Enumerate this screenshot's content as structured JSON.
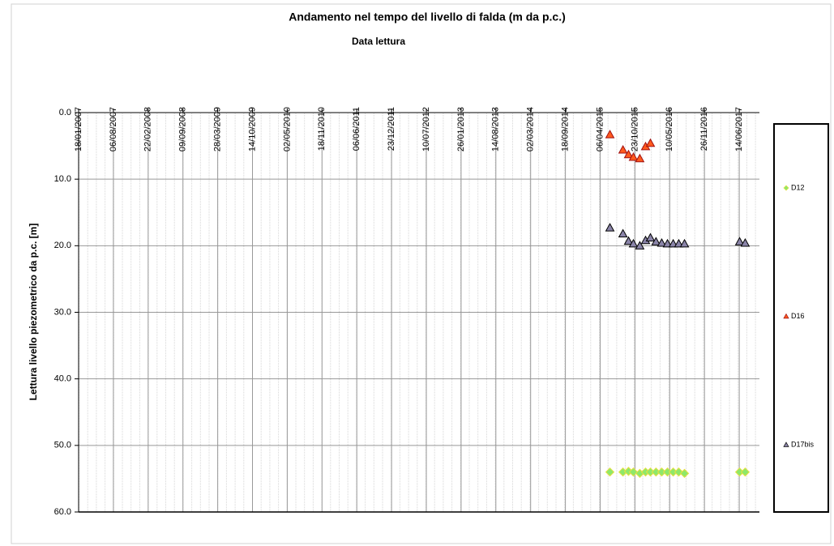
{
  "chart_data": {
    "type": "scatter",
    "title": "Andamento nel tempo del livello di falda (m da p.c.)",
    "x_label": "Data lettura",
    "y_label": "Lettura livello piezometrico da p.c. [m]",
    "xlim": [
      "2007-01-18",
      "2017-10-08"
    ],
    "xticks": [
      {
        "value": "2007-01-18",
        "label": "18/01/2007"
      },
      {
        "value": "2007-08-06",
        "label": "06/08/2007"
      },
      {
        "value": "2008-02-22",
        "label": "22/02/2008"
      },
      {
        "value": "2008-09-09",
        "label": "09/09/2008"
      },
      {
        "value": "2009-03-28",
        "label": "28/03/2009"
      },
      {
        "value": "2009-10-14",
        "label": "14/10/2009"
      },
      {
        "value": "2010-05-02",
        "label": "02/05/2010"
      },
      {
        "value": "2010-11-18",
        "label": "18/11/2010"
      },
      {
        "value": "2011-06-06",
        "label": "06/06/2011"
      },
      {
        "value": "2011-12-23",
        "label": "23/12/2011"
      },
      {
        "value": "2012-07-10",
        "label": "10/07/2012"
      },
      {
        "value": "2013-01-26",
        "label": "26/01/2013"
      },
      {
        "value": "2013-08-14",
        "label": "14/08/2013"
      },
      {
        "value": "2014-03-02",
        "label": "02/03/2014"
      },
      {
        "value": "2014-09-18",
        "label": "18/09/2014"
      },
      {
        "value": "2015-04-06",
        "label": "06/04/2015"
      },
      {
        "value": "2015-10-23",
        "label": "23/10/2015"
      },
      {
        "value": "2016-05-10",
        "label": "10/05/2016"
      },
      {
        "value": "2016-11-26",
        "label": "26/11/2016"
      },
      {
        "value": "2017-06-14",
        "label": "14/06/2017"
      }
    ],
    "ylim": [
      0,
      60
    ],
    "y_inverted": true,
    "yticks": [
      {
        "value": 0,
        "label": "0.0"
      },
      {
        "value": 10,
        "label": "10.0"
      },
      {
        "value": 20,
        "label": "20.0"
      },
      {
        "value": 30,
        "label": "30.0"
      },
      {
        "value": 40,
        "label": "40.0"
      },
      {
        "value": 50,
        "label": "50.0"
      },
      {
        "value": 60,
        "label": "60.0"
      }
    ],
    "grid": true,
    "legend": "right",
    "series": [
      {
        "name": "D12",
        "color": "#8ee86a",
        "edge": "#e8e040",
        "marker": "diamond",
        "x": [
          "2015-06-01",
          "2015-08-15",
          "2015-09-16",
          "2015-10-14",
          "2015-11-20",
          "2015-12-23",
          "2016-01-20",
          "2016-02-21",
          "2016-03-25",
          "2016-04-27",
          "2016-05-30",
          "2016-07-01",
          "2016-08-03",
          "2017-06-16",
          "2017-07-18"
        ],
        "values": [
          54.0,
          54.0,
          53.9,
          54.0,
          54.2,
          54.0,
          54.0,
          54.0,
          54.0,
          54.0,
          54.0,
          54.0,
          54.2,
          54.0,
          54.0
        ]
      },
      {
        "name": "D16",
        "color": "#ff5a1e",
        "edge": "#a01010",
        "marker": "triangle",
        "x": [
          "2015-06-01",
          "2015-08-15",
          "2015-09-16",
          "2015-10-14",
          "2015-11-20",
          "2015-12-23",
          "2016-01-20"
        ],
        "values": [
          3.3,
          5.6,
          6.3,
          6.7,
          6.9,
          5.1,
          4.6
        ]
      },
      {
        "name": "D17bis",
        "color": "#8a84a8",
        "edge": "#000000",
        "marker": "triangle",
        "x": [
          "2015-06-01",
          "2015-08-15",
          "2015-09-16",
          "2015-10-14",
          "2015-11-20",
          "2015-12-23",
          "2016-01-20",
          "2016-02-21",
          "2016-03-25",
          "2016-04-27",
          "2016-05-30",
          "2016-07-01",
          "2016-08-03",
          "2017-06-16",
          "2017-07-18"
        ],
        "values": [
          17.3,
          18.2,
          19.3,
          19.7,
          20.0,
          19.2,
          18.8,
          19.4,
          19.6,
          19.7,
          19.7,
          19.7,
          19.7,
          19.4,
          19.6
        ]
      }
    ]
  }
}
